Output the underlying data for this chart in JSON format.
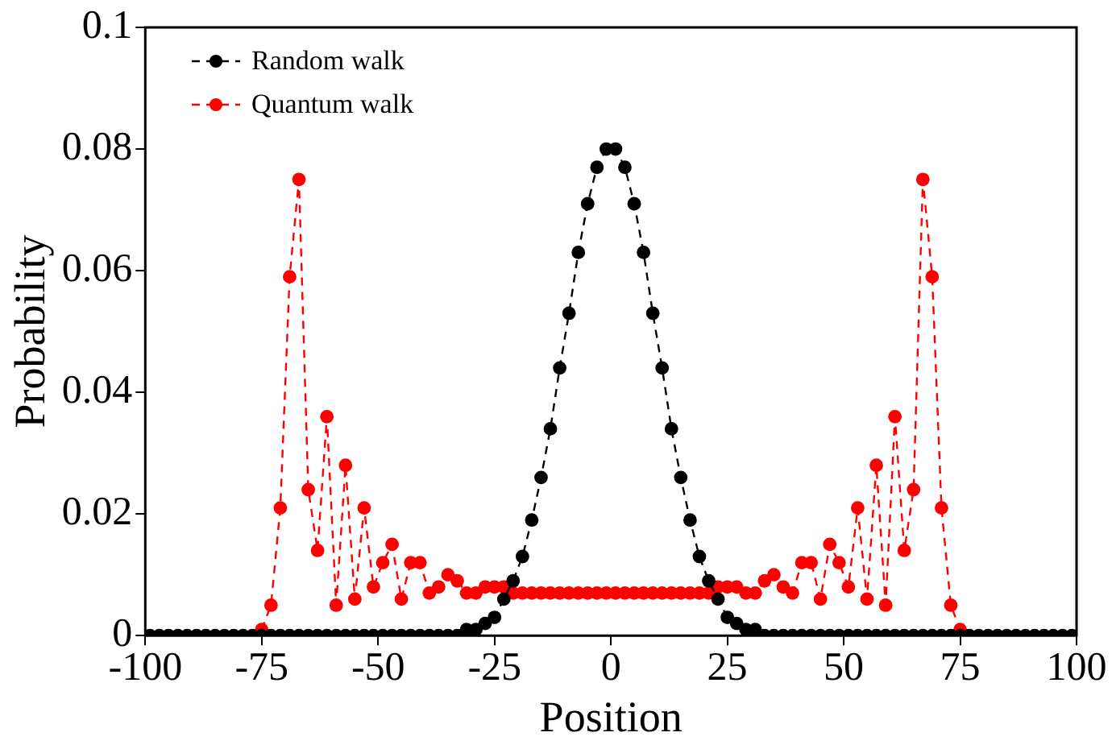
{
  "chart_data": {
    "type": "line",
    "xlabel": "Position",
    "ylabel": "Probability",
    "x": [
      -99,
      -97,
      -95,
      -93,
      -91,
      -89,
      -87,
      -85,
      -83,
      -81,
      -79,
      -77,
      -75,
      -73,
      -71,
      -69,
      -67,
      -65,
      -63,
      -61,
      -59,
      -57,
      -55,
      -53,
      -51,
      -49,
      -47,
      -45,
      -43,
      -41,
      -39,
      -37,
      -35,
      -33,
      -31,
      -29,
      -27,
      -25,
      -23,
      -21,
      -19,
      -17,
      -15,
      -13,
      -11,
      -9,
      -7,
      -5,
      -3,
      -1,
      1,
      3,
      5,
      7,
      9,
      11,
      13,
      15,
      17,
      19,
      21,
      23,
      25,
      27,
      29,
      31,
      33,
      35,
      37,
      39,
      41,
      43,
      45,
      47,
      49,
      51,
      53,
      55,
      57,
      59,
      61,
      63,
      65,
      67,
      69,
      71,
      73,
      75,
      77,
      79,
      81,
      83,
      85,
      87,
      89,
      91,
      93,
      95,
      97,
      99
    ],
    "series": [
      {
        "name": "Random walk",
        "color": "#000000",
        "values": [
          0,
          0,
          0,
          0,
          0,
          0,
          0,
          0,
          0,
          0,
          0,
          0,
          0,
          0,
          0,
          0,
          0,
          0,
          0,
          0,
          0,
          0,
          0,
          0,
          0,
          0,
          0,
          0,
          0,
          0,
          0,
          0,
          0,
          0,
          0.001,
          0.001,
          0.002,
          0.003,
          0.006,
          0.009,
          0.013,
          0.019,
          0.026,
          0.034,
          0.044,
          0.053,
          0.063,
          0.071,
          0.077,
          0.08,
          0.08,
          0.077,
          0.071,
          0.063,
          0.053,
          0.044,
          0.034,
          0.026,
          0.019,
          0.013,
          0.009,
          0.006,
          0.003,
          0.002,
          0.001,
          0.001,
          0,
          0,
          0,
          0,
          0,
          0,
          0,
          0,
          0,
          0,
          0,
          0,
          0,
          0,
          0,
          0,
          0,
          0,
          0,
          0,
          0,
          0,
          0,
          0,
          0,
          0,
          0,
          0,
          0,
          0,
          0,
          0,
          0,
          0
        ]
      },
      {
        "name": "Quantum walk",
        "color": "#ff0000",
        "values": [
          null,
          null,
          null,
          null,
          null,
          null,
          null,
          null,
          null,
          null,
          null,
          null,
          0.001,
          0.005,
          0.021,
          0.059,
          0.075,
          0.024,
          0.014,
          0.036,
          0.005,
          0.028,
          0.006,
          0.021,
          0.008,
          0.012,
          0.015,
          0.006,
          0.012,
          0.012,
          0.007,
          0.008,
          0.01,
          0.009,
          0.007,
          0.007,
          0.008,
          0.008,
          0.008,
          0.007,
          0.007,
          0.007,
          0.007,
          0.007,
          0.007,
          0.007,
          0.007,
          0.007,
          0.007,
          0.007,
          0.007,
          0.007,
          0.007,
          0.007,
          0.007,
          0.007,
          0.007,
          0.007,
          0.007,
          0.007,
          0.007,
          0.008,
          0.008,
          0.008,
          0.007,
          0.007,
          0.009,
          0.01,
          0.008,
          0.007,
          0.012,
          0.012,
          0.006,
          0.015,
          0.012,
          0.008,
          0.021,
          0.006,
          0.028,
          0.005,
          0.036,
          0.014,
          0.024,
          0.075,
          0.059,
          0.021,
          0.005,
          0.001,
          null,
          null,
          null,
          null,
          null,
          null,
          null,
          null,
          null,
          null,
          null,
          null
        ]
      }
    ],
    "xlim": [
      -100,
      100
    ],
    "xticks": [
      -100,
      -75,
      -50,
      -25,
      0,
      25,
      50,
      75,
      100
    ],
    "ylim": [
      0,
      0.1
    ],
    "yticks": [
      0,
      0.02,
      0.04,
      0.06,
      0.08,
      0.1
    ],
    "grid": false,
    "legend": "top left",
    "marker": "circle",
    "line_style": "dashed"
  }
}
